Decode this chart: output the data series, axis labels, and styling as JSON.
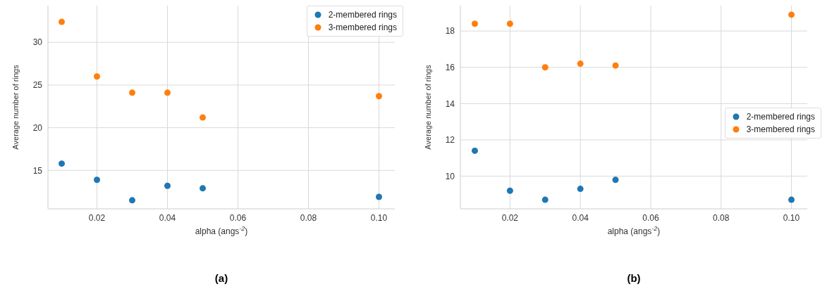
{
  "chart_data": [
    {
      "type": "scatter",
      "xlabel": "alpha (angs$^{-2}$)",
      "ylabel": "Average number of rings",
      "annotations": [
        "(a)"
      ],
      "x": [
        0.01,
        0.02,
        0.03,
        0.04,
        0.05,
        0.1
      ],
      "series": [
        {
          "name": "2-membered rings",
          "color": "#1f77b4",
          "values": [
            15.8,
            13.9,
            11.5,
            13.2,
            12.9,
            11.9
          ]
        },
        {
          "name": "3-membered rings",
          "color": "#ff7f0e",
          "values": [
            32.4,
            26.0,
            24.1,
            24.1,
            21.2,
            23.7
          ]
        }
      ],
      "xlim": [
        0.0061,
        0.1045
      ],
      "ylim": [
        10.5,
        34.3
      ],
      "xticks": [
        0.02,
        0.04,
        0.06,
        0.08,
        {
          "value": 0.1,
          "label": "0.10"
        }
      ],
      "yticks": [
        15,
        20,
        25,
        30
      ],
      "grid": true,
      "legend": "top right",
      "marker": "circle"
    },
    {
      "type": "scatter",
      "xlabel": "alpha (angs$^{-2}$)",
      "ylabel": "Average number of rings",
      "annotations": [
        "(b)"
      ],
      "x": [
        0.01,
        0.02,
        0.03,
        0.04,
        0.05,
        0.1
      ],
      "series": [
        {
          "name": "2-membered rings",
          "color": "#1f77b4",
          "values": [
            11.4,
            9.2,
            8.7,
            9.3,
            9.8,
            8.7
          ]
        },
        {
          "name": "3-membered rings",
          "color": "#ff7f0e",
          "values": [
            18.4,
            18.4,
            16.0,
            16.2,
            16.1,
            18.9
          ]
        }
      ],
      "xlim": [
        0.0059,
        0.1045
      ],
      "ylim": [
        8.2,
        19.4
      ],
      "xticks": [
        0.02,
        0.04,
        0.06,
        0.08,
        {
          "value": 0.1,
          "label": "0.10"
        }
      ],
      "yticks": [
        10,
        12,
        14,
        16,
        18
      ],
      "grid": true,
      "legend": "right",
      "marker": "circle"
    }
  ]
}
